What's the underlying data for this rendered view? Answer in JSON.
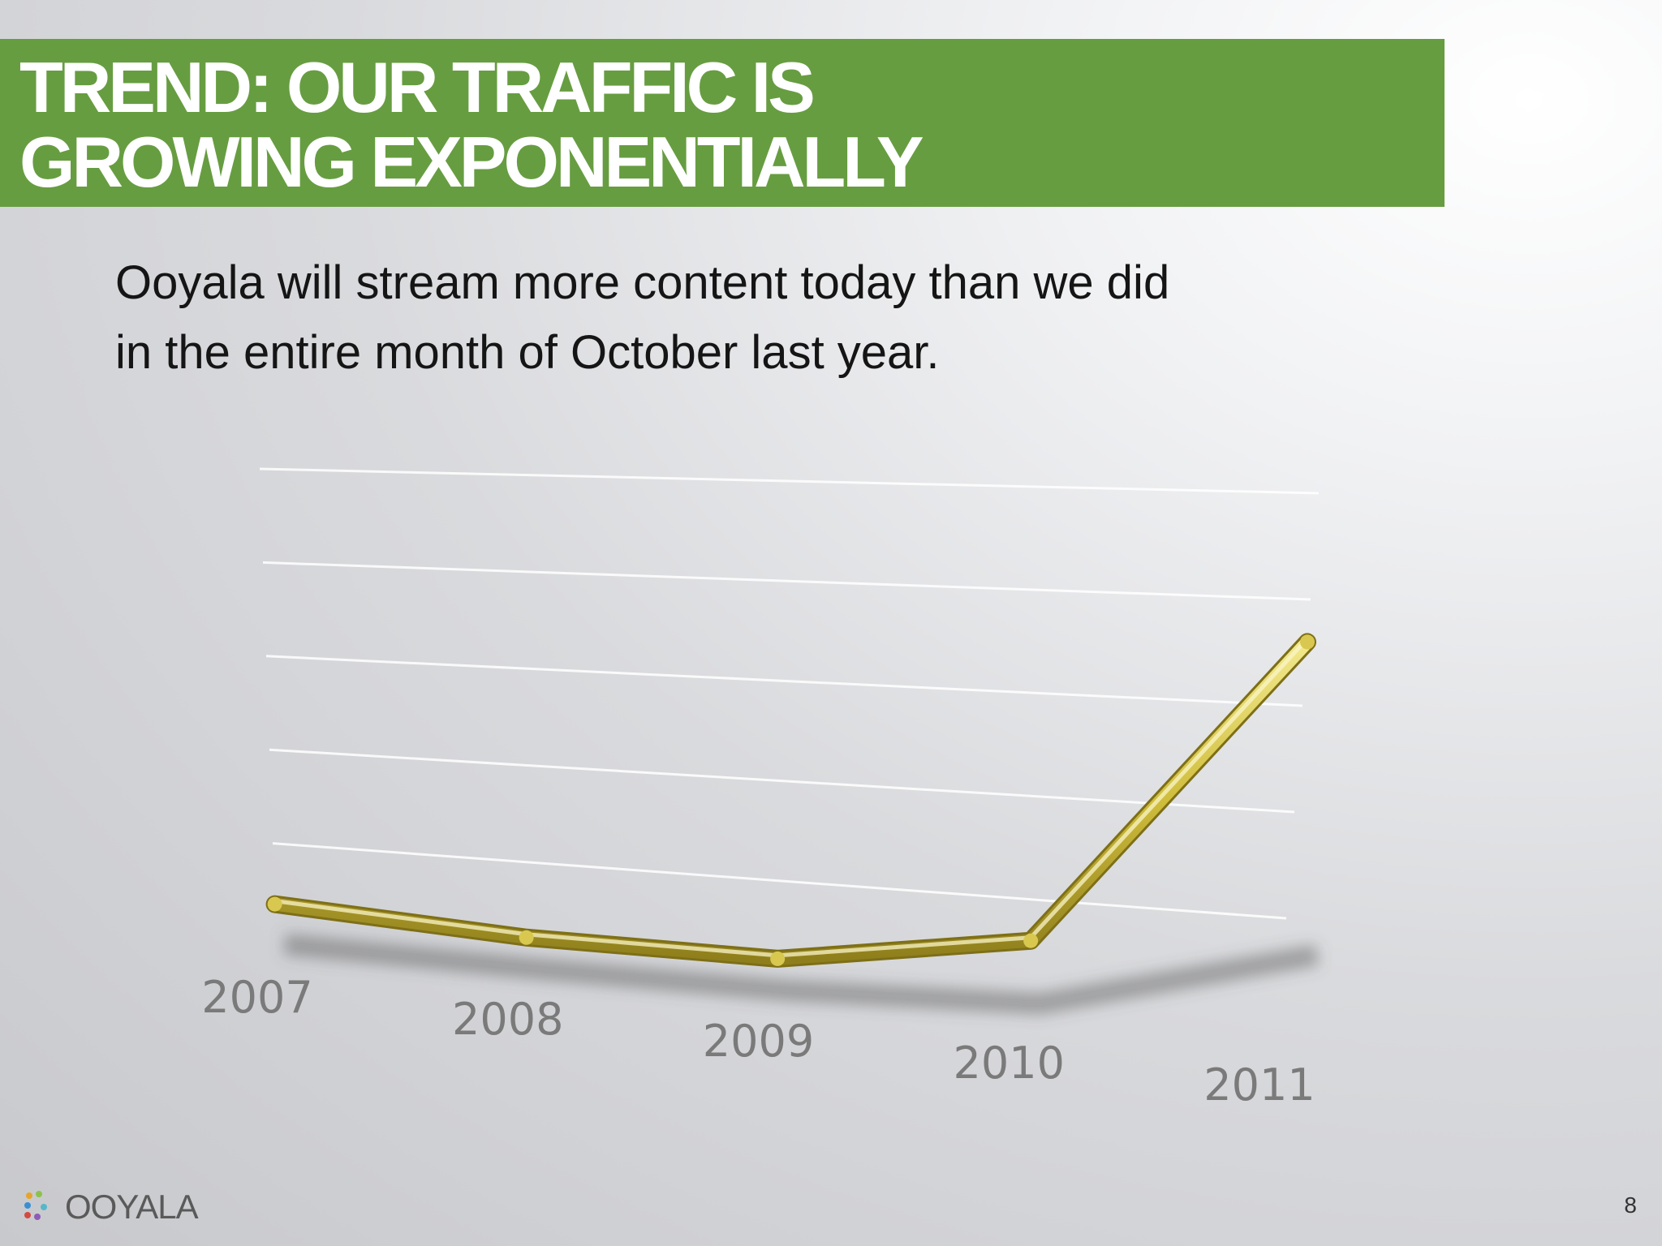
{
  "slide": {
    "title_lines": [
      "TREND: OUR TRAFFIC IS",
      "GROWING EXPONENTIALLY"
    ],
    "subtitle_lines": [
      "Ooyala will stream more content today than we did",
      "in the entire month of October last year."
    ],
    "page_number": "8",
    "logo_text": "OOYALA",
    "title_band_color": "#679d41"
  },
  "chart_data": {
    "type": "line",
    "categories": [
      "2007",
      "2008",
      "2009",
      "2010",
      "2011"
    ],
    "series": [
      {
        "values": [
          0.35,
          0.22,
          0.22,
          0.6,
          3.6
        ]
      }
    ],
    "ylim": [
      0,
      5
    ],
    "yticks_shown": false,
    "grid": true,
    "legend": "none",
    "line_color": "#d8c850"
  }
}
